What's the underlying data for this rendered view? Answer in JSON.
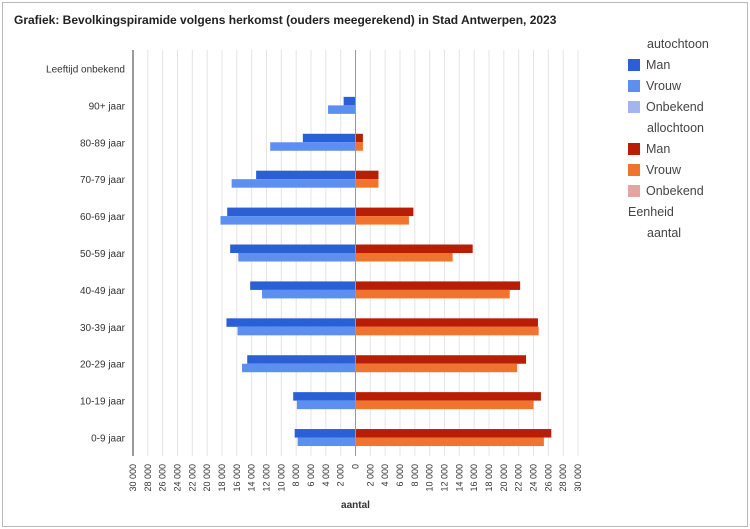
{
  "title": "Grafiek: Bevolkingspiramide volgens herkomst (ouders meegerekend) in Stad Antwerpen, 2023",
  "colors": {
    "auto_man": "#2b5fd6",
    "auto_vrouw": "#5c8ff0",
    "auto_onbekend": "#a3b4f0",
    "allo_man": "#b81e05",
    "allo_vrouw": "#f0742d",
    "allo_onbekend": "#e3a5a0",
    "grid": "#e4e4e4",
    "axis": "#333333",
    "text": "#333333"
  },
  "legend": {
    "group1": "autochtoon",
    "group1_items": [
      {
        "label": "Man",
        "color": "#2b5fd6"
      },
      {
        "label": "Vrouw",
        "color": "#5c8ff0"
      },
      {
        "label": "Onbekend",
        "color": "#a3b4f0"
      }
    ],
    "group2": "allochtoon",
    "group2_items": [
      {
        "label": "Man",
        "color": "#b81e05"
      },
      {
        "label": "Vrouw",
        "color": "#f0742d"
      },
      {
        "label": "Onbekend",
        "color": "#e3a5a0"
      }
    ],
    "unit_title": "Eenheid",
    "unit_value": "aantal"
  },
  "chart_data": {
    "type": "bar",
    "orientation": "horizontal-pyramid",
    "title": "Grafiek: Bevolkingspiramide volgens herkomst (ouders meegerekend) in Stad Antwerpen, 2023",
    "xlabel": "aantal",
    "ylabel": "",
    "xlim": [
      -30000,
      30000
    ],
    "xticks": [
      -30000,
      -28000,
      -26000,
      -24000,
      -22000,
      -20000,
      -18000,
      -16000,
      -14000,
      -12000,
      -10000,
      -8000,
      -6000,
      -4000,
      -2000,
      0,
      2000,
      4000,
      6000,
      8000,
      10000,
      12000,
      14000,
      16000,
      18000,
      20000,
      22000,
      24000,
      26000,
      28000,
      30000
    ],
    "xtick_labels": [
      "30 000",
      "28 000",
      "26 000",
      "24 000",
      "22 000",
      "20 000",
      "18 000",
      "16 000",
      "14 000",
      "12 000",
      "10 000",
      "8 000",
      "6 000",
      "4 000",
      "2 000",
      "0",
      "2 000",
      "4 000",
      "6 000",
      "8 000",
      "10 000",
      "12 000",
      "14 000",
      "16 000",
      "18 000",
      "20 000",
      "22 000",
      "24 000",
      "26 000",
      "28 000",
      "30 000"
    ],
    "categories": [
      "Leeftijd onbekend",
      "90+ jaar",
      "80-89 jaar",
      "70-79 jaar",
      "60-69 jaar",
      "50-59 jaar",
      "40-49 jaar",
      "30-39 jaar",
      "20-29 jaar",
      "10-19 jaar",
      "0-9 jaar"
    ],
    "series": [
      {
        "name": "autochtoon Man",
        "side": "left",
        "color": "#2b5fd6",
        "values": [
          0,
          1600,
          7100,
          13400,
          17300,
          16900,
          14200,
          17400,
          14600,
          8400,
          8200
        ]
      },
      {
        "name": "autochtoon Vrouw",
        "side": "left",
        "color": "#5c8ff0",
        "values": [
          0,
          3700,
          11500,
          16700,
          18200,
          15800,
          12600,
          15900,
          15300,
          7900,
          7800
        ]
      },
      {
        "name": "autochtoon Onbekend",
        "side": "left",
        "color": "#a3b4f0",
        "values": [
          0,
          0,
          0,
          0,
          0,
          0,
          0,
          0,
          0,
          0,
          0
        ]
      },
      {
        "name": "allochtoon Man",
        "side": "right",
        "color": "#b81e05",
        "values": [
          0,
          0,
          1000,
          3100,
          7800,
          15800,
          22200,
          24600,
          23000,
          25000,
          26400
        ]
      },
      {
        "name": "allochtoon Vrouw",
        "side": "right",
        "color": "#f0742d",
        "values": [
          0,
          0,
          1000,
          3100,
          7200,
          13100,
          20800,
          24700,
          21800,
          24000,
          25400
        ]
      },
      {
        "name": "allochtoon Onbekend",
        "side": "right",
        "color": "#e3a5a0",
        "values": [
          0,
          0,
          0,
          0,
          0,
          0,
          0,
          0,
          0,
          0,
          0
        ]
      }
    ]
  }
}
